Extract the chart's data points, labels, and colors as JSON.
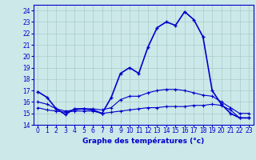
{
  "title": "Graphe des températures (°c)",
  "bg_color": "#cce8e8",
  "grid_color": "#aacccc",
  "line_color": "#0000cc",
  "xlim": [
    -0.5,
    23.5
  ],
  "ylim": [
    14,
    24.5
  ],
  "xticks": [
    0,
    1,
    2,
    3,
    4,
    5,
    6,
    7,
    8,
    9,
    10,
    11,
    12,
    13,
    14,
    15,
    16,
    17,
    18,
    19,
    20,
    21,
    22,
    23
  ],
  "yticks": [
    14,
    15,
    16,
    17,
    18,
    19,
    20,
    21,
    22,
    23,
    24
  ],
  "series1_x": [
    0,
    1,
    2,
    3,
    4,
    5,
    6,
    7,
    8,
    9,
    10,
    11,
    12,
    13,
    14,
    15,
    16,
    17,
    18,
    19,
    20,
    21,
    22,
    23
  ],
  "series1_y": [
    16.9,
    16.4,
    15.4,
    14.9,
    15.4,
    15.4,
    15.3,
    15.0,
    16.4,
    18.5,
    19.0,
    18.5,
    20.8,
    22.5,
    23.0,
    22.7,
    23.9,
    23.2,
    21.7,
    17.0,
    15.8,
    15.0,
    14.6,
    14.6
  ],
  "series2_x": [
    0,
    1,
    2,
    3,
    4,
    5,
    6,
    7,
    8,
    9,
    10,
    11,
    12,
    13,
    14,
    15,
    16,
    17,
    18,
    19,
    20,
    21,
    22,
    23
  ],
  "series2_y": [
    16.0,
    15.8,
    15.4,
    15.2,
    15.3,
    15.4,
    15.4,
    15.3,
    15.5,
    16.2,
    16.5,
    16.5,
    16.8,
    17.0,
    17.1,
    17.1,
    17.0,
    16.8,
    16.6,
    16.5,
    16.0,
    15.5,
    15.0,
    15.0
  ],
  "series3_x": [
    0,
    1,
    2,
    3,
    4,
    5,
    6,
    7,
    8,
    9,
    10,
    11,
    12,
    13,
    14,
    15,
    16,
    17,
    18,
    19,
    20,
    21,
    22,
    23
  ],
  "series3_y": [
    15.5,
    15.3,
    15.2,
    15.1,
    15.2,
    15.2,
    15.2,
    15.0,
    15.1,
    15.2,
    15.3,
    15.4,
    15.5,
    15.5,
    15.6,
    15.6,
    15.6,
    15.7,
    15.7,
    15.8,
    15.7,
    15.3,
    14.6,
    14.6
  ],
  "xlabel_fontsize": 6.5,
  "tick_fontsize": 5.5
}
